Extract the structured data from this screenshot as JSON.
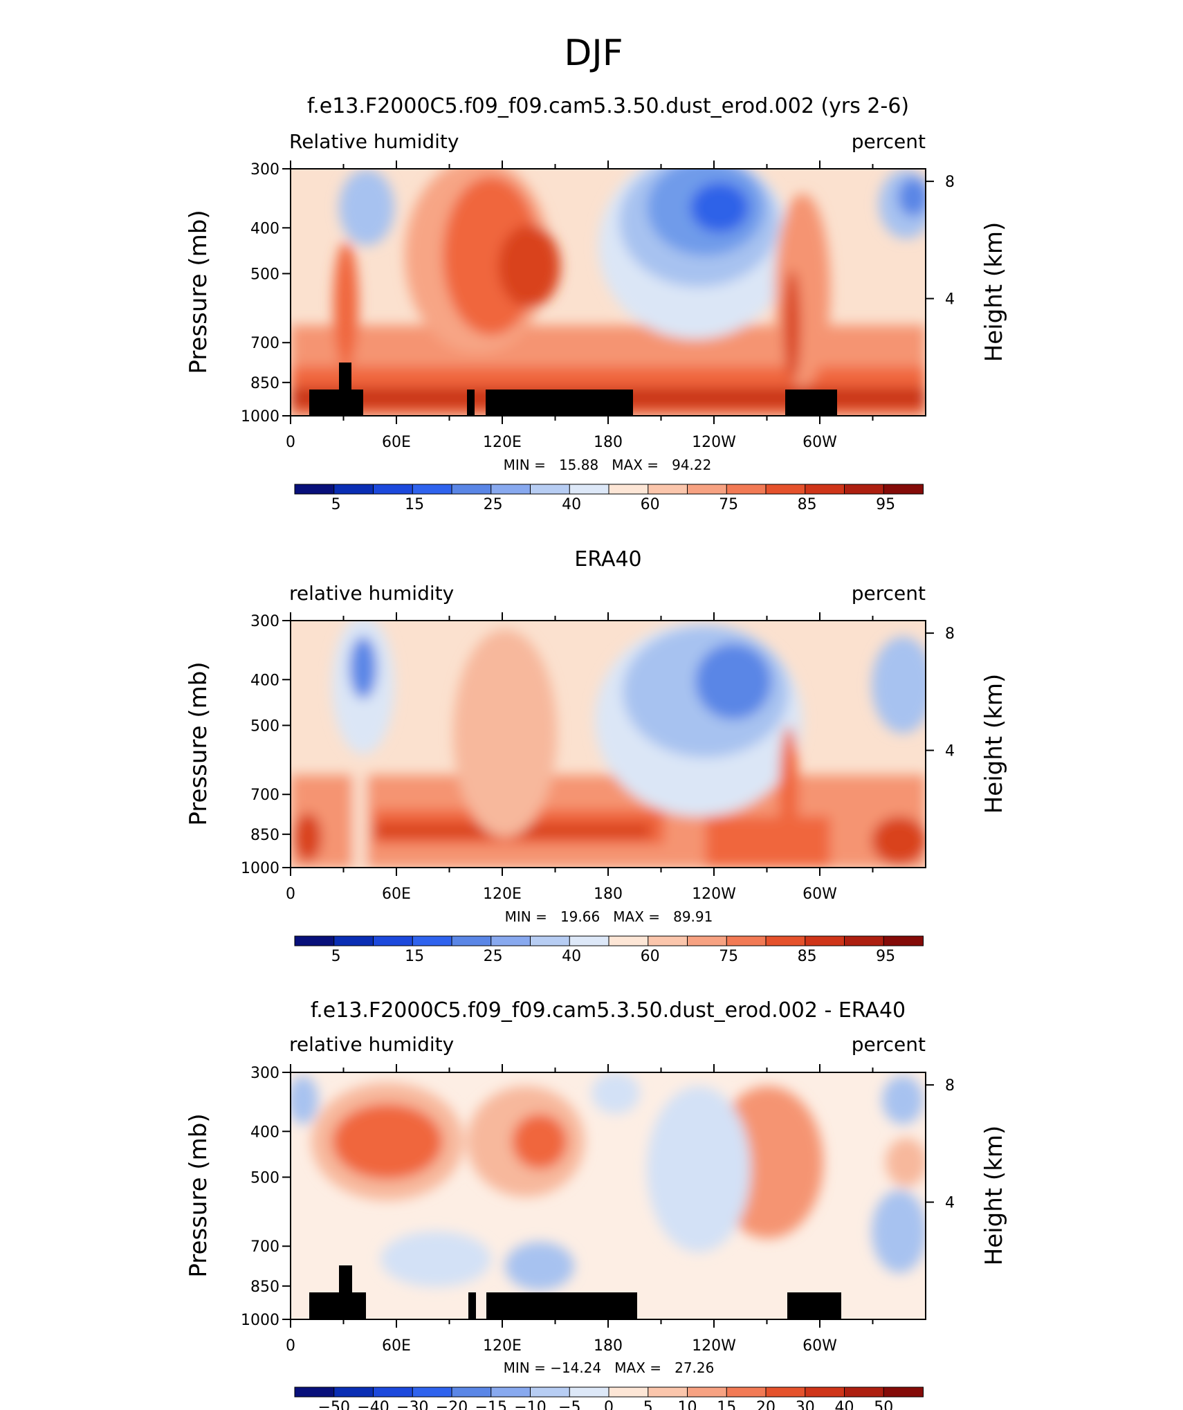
{
  "figure_title": "DJF",
  "colors": {
    "land_mask": "#000000",
    "axis": "#000000",
    "background": "#ffffff"
  },
  "chart_data": [
    {
      "type": "contour",
      "title": "f.e13.F2000C5.f09_f09.cam5.3.50.dust_erod.002 (yrs 2-6)",
      "left_label": "Relative humidity",
      "right_label": "percent",
      "ylabel": "Pressure (mb)",
      "y2label": "Height (km)",
      "x_ticks": [
        "0",
        "60E",
        "120E",
        "180",
        "120W",
        "60W"
      ],
      "y_ticks": [
        "300",
        "400",
        "500",
        "700",
        "850",
        "1000"
      ],
      "y2_ticks": [
        "8",
        "4"
      ],
      "min_max_text": "MIN =   15.88   MAX =   94.22",
      "min": 15.88,
      "max": 94.22,
      "colorbar_labels": [
        "5",
        "15",
        "25",
        "40",
        "60",
        "75",
        "85",
        "95"
      ]
    },
    {
      "type": "contour",
      "title": "ERA40",
      "left_label": "relative humidity",
      "right_label": "percent",
      "ylabel": "Pressure (mb)",
      "y2label": "Height (km)",
      "x_ticks": [
        "0",
        "60E",
        "120E",
        "180",
        "120W",
        "60W"
      ],
      "y_ticks": [
        "300",
        "400",
        "500",
        "700",
        "850",
        "1000"
      ],
      "y2_ticks": [
        "8",
        "4"
      ],
      "min_max_text": "MIN =   19.66   MAX =   89.91",
      "min": 19.66,
      "max": 89.91,
      "colorbar_labels": [
        "5",
        "15",
        "25",
        "40",
        "60",
        "75",
        "85",
        "95"
      ]
    },
    {
      "type": "contour",
      "title": "f.e13.F2000C5.f09_f09.cam5.3.50.dust_erod.002 - ERA40",
      "left_label": "relative humidity",
      "right_label": "percent",
      "ylabel": "Pressure (mb)",
      "y2label": "Height (km)",
      "x_ticks": [
        "0",
        "60E",
        "120E",
        "180",
        "120W",
        "60W"
      ],
      "y_ticks": [
        "300",
        "400",
        "500",
        "700",
        "850",
        "1000"
      ],
      "y2_ticks": [
        "8",
        "4"
      ],
      "min_max_text": "MIN = −14.24   MAX =   27.26",
      "min": -14.24,
      "max": 27.26,
      "colorbar_labels": [
        "−50",
        "−40",
        "−30",
        "−20",
        "−15",
        "−10",
        "−5",
        "0",
        "5",
        "10",
        "15",
        "20",
        "30",
        "40",
        "50"
      ]
    }
  ]
}
